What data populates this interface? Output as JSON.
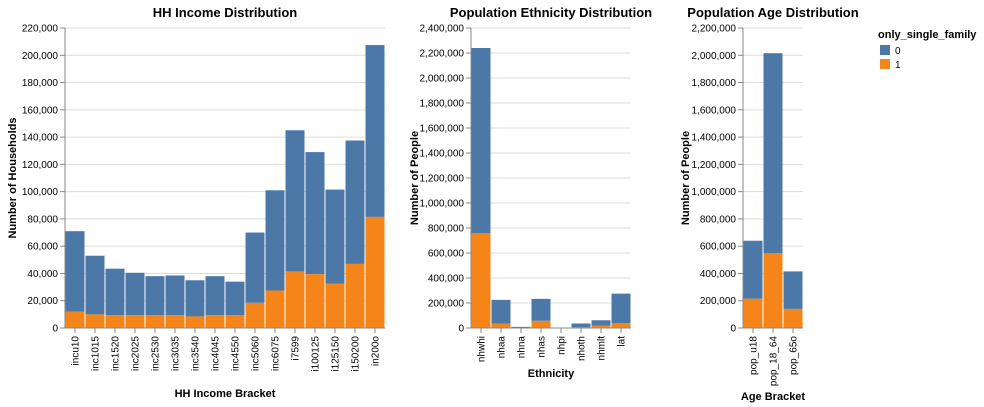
{
  "chart_data": [
    {
      "type": "bar",
      "stacked": true,
      "title": "HH Income Distribution",
      "xlabel": "HH Income Bracket",
      "ylabel": "Number of Households",
      "ylim": [
        0,
        220000
      ],
      "yticks": [
        0,
        20000,
        40000,
        60000,
        80000,
        100000,
        120000,
        140000,
        160000,
        180000,
        200000,
        220000
      ],
      "ytick_labels": [
        "0",
        "20,000",
        "40,000",
        "60,000",
        "80,000",
        "100,000",
        "120,000",
        "140,000",
        "160,000",
        "180,000",
        "200,000",
        "220,000"
      ],
      "grid": true,
      "categories": [
        "incu10",
        "inc1015",
        "inc1520",
        "inc2025",
        "inc2530",
        "inc3035",
        "inc3540",
        "inc4045",
        "inc4550",
        "inc5060",
        "inc6075",
        "i7599",
        "i100125",
        "i125150",
        "i150200",
        "in200o"
      ],
      "series": [
        {
          "name": "0",
          "values": [
            59000,
            43000,
            34000,
            31000,
            28500,
            29000,
            26500,
            28500,
            24500,
            51500,
            73500,
            103500,
            89500,
            69000,
            90500,
            126000
          ]
        },
        {
          "name": "1",
          "values": [
            12000,
            10000,
            9500,
            9500,
            9500,
            9500,
            8500,
            9500,
            9500,
            18500,
            27500,
            41500,
            39500,
            32500,
            47000,
            81500
          ]
        }
      ]
    },
    {
      "type": "bar",
      "stacked": true,
      "title": "Population Ethnicity Distribution",
      "xlabel": "Ethnicity",
      "ylabel": "Number of People",
      "ylim": [
        0,
        2400000
      ],
      "yticks": [
        0,
        200000,
        400000,
        600000,
        800000,
        1000000,
        1200000,
        1400000,
        1600000,
        1800000,
        2000000,
        2200000,
        2400000
      ],
      "ytick_labels": [
        "0",
        "200,000",
        "400,000",
        "600,000",
        "800,000",
        "1,000,000",
        "1,200,000",
        "1,400,000",
        "1,600,000",
        "1,800,000",
        "2,000,000",
        "2,200,000",
        "2,400,000"
      ],
      "grid": true,
      "categories": [
        "nhwhi",
        "nhaa",
        "nhna",
        "nhas",
        "nhpi",
        "nhoth",
        "nhmlt",
        "lat"
      ],
      "series": [
        {
          "name": "0",
          "values": [
            1480000,
            190000,
            7000,
            175000,
            3000,
            28000,
            42000,
            235000
          ]
        },
        {
          "name": "1",
          "values": [
            760000,
            35000,
            2000,
            58000,
            1000,
            8000,
            20000,
            40000
          ]
        }
      ]
    },
    {
      "type": "bar",
      "stacked": true,
      "title": "Population Age Distribution",
      "xlabel": "Age Bracket",
      "ylabel": "Number of People",
      "ylim": [
        0,
        2200000
      ],
      "yticks": [
        0,
        200000,
        400000,
        600000,
        800000,
        1000000,
        1200000,
        1400000,
        1600000,
        1800000,
        2000000,
        2200000
      ],
      "ytick_labels": [
        "0",
        "200,000",
        "400,000",
        "600,000",
        "800,000",
        "1,000,000",
        "1,200,000",
        "1,400,000",
        "1,600,000",
        "1,800,000",
        "2,000,000",
        "2,200,000"
      ],
      "grid": true,
      "categories": [
        "pop_u18",
        "pop_18_64",
        "pop_65o"
      ],
      "series": [
        {
          "name": "0",
          "values": [
            425000,
            1465000,
            275000
          ]
        },
        {
          "name": "1",
          "values": [
            215000,
            550000,
            140000
          ]
        }
      ]
    }
  ],
  "legend": {
    "title": "only_single_family",
    "placement": "top-right",
    "items": [
      {
        "label": "0",
        "color": "#4c78a8"
      },
      {
        "label": "1",
        "color": "#f58518"
      }
    ]
  },
  "colors": {
    "series0": "#4c78a8",
    "series1": "#f58518"
  }
}
